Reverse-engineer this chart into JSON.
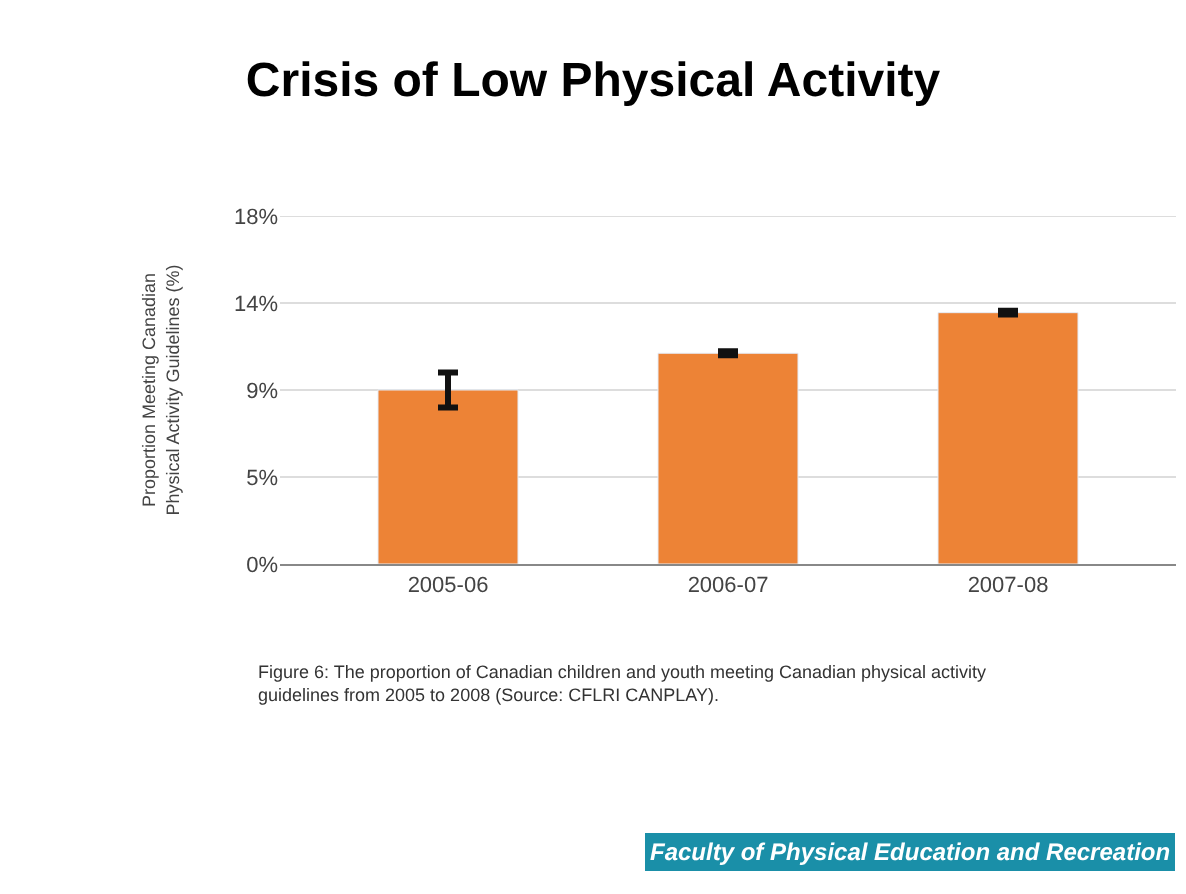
{
  "chart_data": {
    "type": "bar",
    "title": "Crisis of Low Physical Activity",
    "ylabel": "Proportion Meeting Canadian\nPhysical Activity Guidelines (%)",
    "categories": [
      "2005-06",
      "2006-07",
      "2007-08"
    ],
    "series": [
      {
        "color": "#ed8336",
        "values": [
          9.0,
          10.9,
          13.0
        ],
        "errors": [
          [
            8.1,
            9.9
          ],
          0.1,
          0.1
        ]
      }
    ],
    "ylim": [
      0,
      18
    ],
    "yticks": [
      {
        "value": 0,
        "label": "0%"
      },
      {
        "value": 4.5,
        "label": "5%"
      },
      {
        "value": 9,
        "label": "9%"
      },
      {
        "value": 13.5,
        "label": "14%"
      },
      {
        "value": 18,
        "label": "18%"
      }
    ],
    "grid": "y",
    "annotations": [
      "Figure 6: The proportion of Canadian children and youth meeting Canadian physical activity\nguidelines from 2005 to 2008 (Source: CFLRI CANPLAY).",
      "Faculty of Physical Education and Recreation"
    ]
  }
}
